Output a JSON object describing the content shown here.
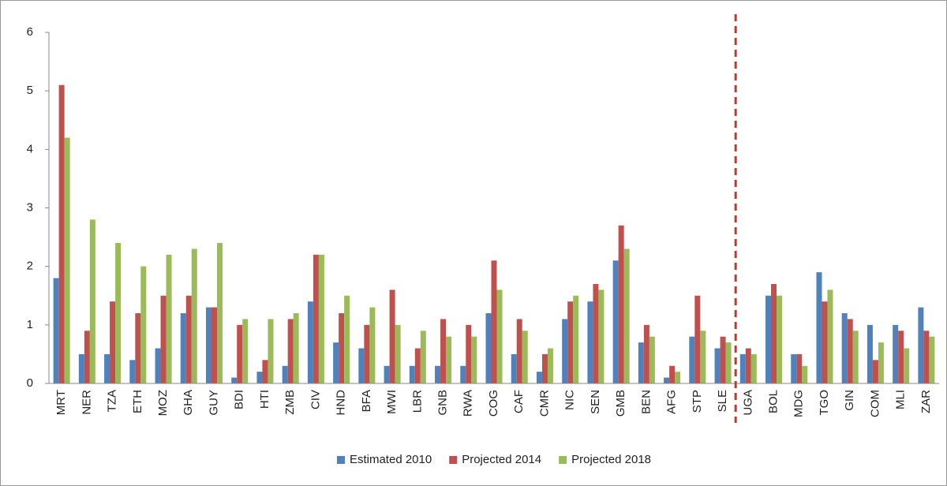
{
  "chart_data": {
    "type": "bar",
    "categories": [
      "MRT",
      "NER",
      "TZA",
      "ETH",
      "MOZ",
      "GHA",
      "GUY",
      "BDI",
      "HTI",
      "ZMB",
      "CIV",
      "HND",
      "BFA",
      "MWI",
      "LBR",
      "GNB",
      "RWA",
      "COG",
      "CAF",
      "CMR",
      "NIC",
      "SEN",
      "GMB",
      "BEN",
      "AFG",
      "STP",
      "SLE",
      "UGA",
      "BOL",
      "MDG",
      "TGO",
      "GIN",
      "COM",
      "MLI",
      "ZAR"
    ],
    "series": [
      {
        "name": "Estimated 2010",
        "color": "#4f81bd",
        "values": [
          1.8,
          0.5,
          0.5,
          0.4,
          0.6,
          1.2,
          1.3,
          0.1,
          0.2,
          0.3,
          1.4,
          0.7,
          0.6,
          0.3,
          0.3,
          0.3,
          0.3,
          1.2,
          0.5,
          0.2,
          1.1,
          1.4,
          2.1,
          0.7,
          0.1,
          0.8,
          0.6,
          0.5,
          1.5,
          0.5,
          1.9,
          1.2,
          1.0,
          1.0,
          1.3
        ]
      },
      {
        "name": "Projected 2014",
        "color": "#c0504d",
        "values": [
          5.1,
          0.9,
          1.4,
          1.2,
          1.5,
          1.5,
          1.3,
          1.0,
          0.4,
          1.1,
          2.2,
          1.2,
          1.0,
          1.6,
          0.6,
          1.1,
          1.0,
          2.1,
          1.1,
          0.5,
          1.4,
          1.7,
          2.7,
          1.0,
          0.3,
          1.5,
          0.8,
          0.6,
          1.7,
          0.5,
          1.4,
          1.1,
          0.4,
          0.9,
          0.9
        ]
      },
      {
        "name": "Projected 2018",
        "color": "#9bbb59",
        "values": [
          4.2,
          2.8,
          2.4,
          2.0,
          2.2,
          2.3,
          2.4,
          1.1,
          1.1,
          1.2,
          2.2,
          1.5,
          1.3,
          1.0,
          0.9,
          0.8,
          0.8,
          1.6,
          0.9,
          0.6,
          1.5,
          1.6,
          2.3,
          0.8,
          0.2,
          0.9,
          0.7,
          0.5,
          1.5,
          0.3,
          1.6,
          0.9,
          0.7,
          0.6,
          0.8
        ]
      }
    ],
    "ylim": [
      0,
      6
    ],
    "yticks": [
      0,
      1,
      2,
      3,
      4,
      5,
      6
    ],
    "grid": false,
    "legend": "bottom",
    "divider": {
      "after_index": 26,
      "color": "#c0392b",
      "style": "dashed"
    }
  }
}
